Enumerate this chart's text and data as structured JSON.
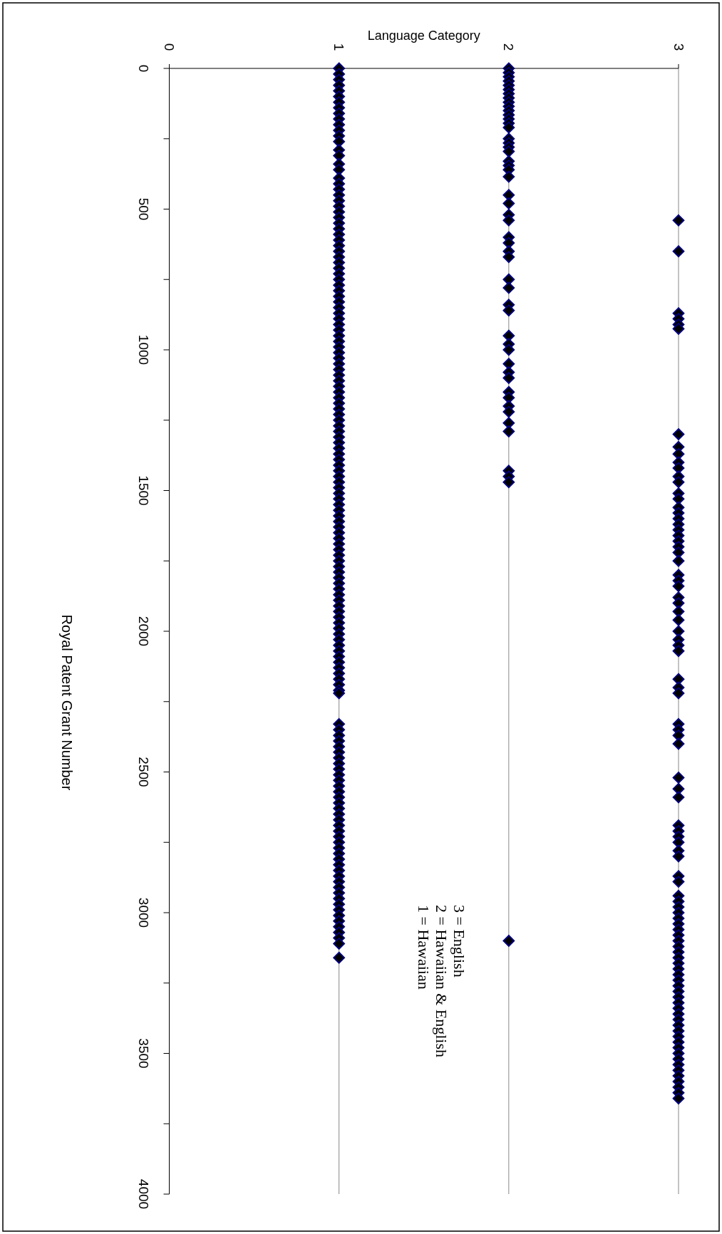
{
  "chart_data": {
    "type": "scatter",
    "xlabel": "Language Category",
    "ylabel": "Royal Patent Grant Number",
    "ylim": [
      4000,
      0
    ],
    "yticks": [
      0,
      {
        "value": 250,
        "label": null
      },
      500,
      {
        "value": 750,
        "label": null
      },
      1000,
      {
        "value": 1250,
        "label": null
      },
      1500,
      {
        "value": 1750,
        "label": null
      },
      2000,
      {
        "value": 2250,
        "label": null
      },
      2500,
      {
        "value": 2750,
        "label": null
      },
      3000,
      {
        "value": 3250,
        "label": null
      },
      3500,
      {
        "value": 3750,
        "label": null
      },
      4000
    ],
    "xlim": [
      0,
      3
    ],
    "xticks": [
      0,
      1,
      2,
      3
    ],
    "grid": "x",
    "marker": "diamond",
    "annotations": [
      "3 = English",
      "2 = Hawaiian & English",
      "1 = Hawaiian"
    ],
    "series": [
      {
        "color": "#000080",
        "values": [
          0,
          20,
          40,
          60,
          80,
          100,
          120,
          140,
          160,
          180,
          200,
          220,
          240,
          260,
          290,
          310,
          340,
          360,
          390,
          410,
          430,
          450,
          470,
          490,
          510,
          530,
          550,
          570,
          590,
          610,
          630,
          650,
          670,
          690,
          710,
          730,
          750,
          770,
          790,
          810,
          830,
          850,
          870,
          890,
          910,
          930,
          950,
          970,
          990,
          1010,
          1030,
          1050,
          1070,
          1090,
          1110,
          1130,
          1150,
          1170,
          1190,
          1210,
          1230,
          1250,
          1270,
          1290,
          1310,
          1330,
          1350,
          1370,
          1390,
          1410,
          1430,
          1450,
          1470,
          1490,
          1510,
          1530,
          1550,
          1570,
          1590,
          1610,
          1630,
          1650,
          1670,
          1690,
          1710,
          1730,
          1750,
          1770,
          1790,
          1810,
          1830,
          1850,
          1870,
          1890,
          1910,
          1930,
          1950,
          1970,
          1990,
          2010,
          2030,
          2050,
          2070,
          2090,
          2110,
          2130,
          2150,
          2170,
          2190,
          2210,
          2220,
          2330,
          2350,
          2370,
          2390,
          2410,
          2430,
          2450,
          2470,
          2490,
          2510,
          2530,
          2550,
          2570,
          2590,
          2610,
          2630,
          2650,
          2670,
          2690,
          2710,
          2730,
          2750,
          2770,
          2790,
          2810,
          2830,
          2850,
          2870,
          2890,
          2910,
          2930,
          2950,
          2970,
          2990,
          3010,
          3030,
          3050,
          3070,
          3090,
          3110,
          3160
        ],
        "x": [
          1,
          1,
          1,
          1,
          1,
          1,
          1,
          1,
          1,
          1,
          1,
          1,
          1,
          1,
          1,
          1,
          1,
          1,
          1,
          1,
          1,
          1,
          1,
          1,
          1,
          1,
          1,
          1,
          1,
          1,
          1,
          1,
          1,
          1,
          1,
          1,
          1,
          1,
          1,
          1,
          1,
          1,
          1,
          1,
          1,
          1,
          1,
          1,
          1,
          1,
          1,
          1,
          1,
          1,
          1,
          1,
          1,
          1,
          1,
          1,
          1,
          1,
          1,
          1,
          1,
          1,
          1,
          1,
          1,
          1,
          1,
          1,
          1,
          1,
          1,
          1,
          1,
          1,
          1,
          1,
          1,
          1,
          1,
          1,
          1,
          1,
          1,
          1,
          1,
          1,
          1,
          1,
          1,
          1,
          1,
          1,
          1,
          1,
          1,
          1,
          1,
          1,
          1,
          1,
          1,
          1,
          1,
          1,
          1,
          1,
          1,
          1,
          1,
          1,
          1,
          1,
          1,
          1,
          1,
          1,
          1,
          1,
          1,
          1,
          1,
          1,
          1,
          1,
          1,
          1,
          1,
          1,
          1,
          1,
          1,
          1,
          1,
          1,
          1,
          1,
          1,
          1,
          1,
          1,
          1,
          1,
          1,
          1,
          1,
          1,
          1,
          1
        ]
      },
      {
        "color": "#000080",
        "values": [
          0,
          15,
          30,
          45,
          60,
          75,
          90,
          105,
          120,
          135,
          150,
          165,
          180,
          195,
          210,
          250,
          265,
          280,
          295,
          330,
          345,
          360,
          385,
          450,
          480,
          520,
          540,
          600,
          620,
          650,
          670,
          750,
          780,
          840,
          860,
          950,
          980,
          1000,
          1050,
          1080,
          1100,
          1150,
          1170,
          1200,
          1220,
          1260,
          1290,
          1430,
          1450,
          1470,
          3100
        ],
        "x": [
          2,
          2,
          2,
          2,
          2,
          2,
          2,
          2,
          2,
          2,
          2,
          2,
          2,
          2,
          2,
          2,
          2,
          2,
          2,
          2,
          2,
          2,
          2,
          2,
          2,
          2,
          2,
          2,
          2,
          2,
          2,
          2,
          2,
          2,
          2,
          2,
          2,
          2,
          2,
          2,
          2,
          2,
          2,
          2,
          2,
          2,
          2,
          2,
          2,
          2,
          2
        ]
      },
      {
        "color": "#000080",
        "values": [
          540,
          650,
          870,
          890,
          910,
          925,
          1300,
          1345,
          1370,
          1400,
          1420,
          1450,
          1470,
          1510,
          1530,
          1560,
          1580,
          1600,
          1620,
          1640,
          1660,
          1680,
          1700,
          1720,
          1750,
          1800,
          1820,
          1840,
          1880,
          1900,
          1930,
          1960,
          2000,
          2030,
          2050,
          2070,
          2170,
          2200,
          2220,
          2330,
          2350,
          2370,
          2400,
          2520,
          2560,
          2590,
          2690,
          2710,
          2730,
          2750,
          2780,
          2800,
          2870,
          2890,
          2940,
          2960,
          2980,
          3000,
          3020,
          3040,
          3060,
          3080,
          3100,
          3120,
          3140,
          3160,
          3180,
          3200,
          3220,
          3240,
          3260,
          3280,
          3300,
          3320,
          3340,
          3360,
          3380,
          3400,
          3420,
          3440,
          3460,
          3480,
          3500,
          3520,
          3540,
          3560,
          3580,
          3600,
          3620,
          3640,
          3660
        ],
        "x": [
          3,
          3,
          3,
          3,
          3,
          3,
          3,
          3,
          3,
          3,
          3,
          3,
          3,
          3,
          3,
          3,
          3,
          3,
          3,
          3,
          3,
          3,
          3,
          3,
          3,
          3,
          3,
          3,
          3,
          3,
          3,
          3,
          3,
          3,
          3,
          3,
          3,
          3,
          3,
          3,
          3,
          3,
          3,
          3,
          3,
          3,
          3,
          3,
          3,
          3,
          3,
          3,
          3,
          3,
          3,
          3,
          3,
          3,
          3,
          3,
          3,
          3,
          3,
          3,
          3,
          3,
          3,
          3,
          3,
          3,
          3,
          3,
          3,
          3,
          3,
          3,
          3,
          3,
          3,
          3,
          3,
          3,
          3,
          3,
          3,
          3,
          3,
          3,
          3,
          3,
          3
        ]
      }
    ]
  }
}
